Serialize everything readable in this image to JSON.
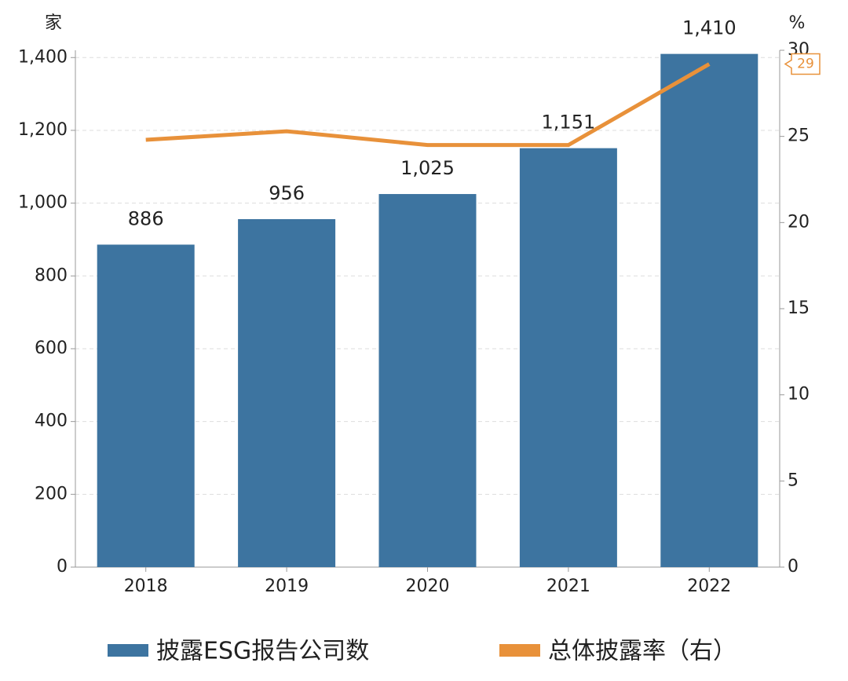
{
  "chart_data": {
    "type": "bar-line",
    "y_unit": "家",
    "y2_unit": "%",
    "categories": [
      "2018",
      "2019",
      "2020",
      "2021",
      "2022"
    ],
    "series": [
      {
        "name": "披露ESG报告公司数",
        "type": "bar",
        "color": "#3d74a0",
        "axis": "y",
        "values": [
          886,
          956,
          1025,
          1151,
          1410
        ],
        "value_labels": [
          "886",
          "956",
          "1,025",
          "1,151",
          "1,410"
        ]
      },
      {
        "name": "总体披露率（右）",
        "type": "line",
        "color": "#e8913a",
        "axis": "y2",
        "values": [
          24.8,
          25.3,
          24.5,
          24.5,
          29.2
        ],
        "value_labels": [
          null,
          null,
          null,
          null,
          "29"
        ]
      }
    ],
    "ylim": [
      0,
      1420
    ],
    "yticks": [
      0,
      200,
      400,
      600,
      800,
      {
        "value": 1000,
        "label": "1,000"
      },
      {
        "value": 1200,
        "label": "1,200"
      },
      {
        "value": 1400,
        "label": "1,400"
      }
    ],
    "y2lim": [
      0,
      30
    ],
    "y2ticks": [
      0,
      5,
      10,
      15,
      20,
      25,
      30
    ],
    "grid": true,
    "legend": "bottom"
  }
}
